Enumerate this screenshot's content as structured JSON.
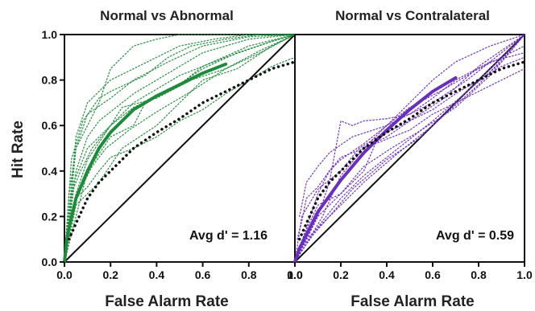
{
  "chart_data": [
    {
      "type": "line",
      "title": "Normal vs Abnormal",
      "xlabel": "False Alarm Rate",
      "ylabel": "Hit Rate",
      "xlim": [
        0,
        1
      ],
      "ylim": [
        0,
        1
      ],
      "xticks": [
        "0.0",
        "0.2",
        "0.4",
        "0.6",
        "0.8",
        "1.0"
      ],
      "yticks": [
        "0.0",
        "0.2",
        "0.4",
        "0.6",
        "0.8",
        "1.0"
      ],
      "annotation": "Avg d' = 1.16",
      "color": "#1f8a3c",
      "series": [
        {
          "x": [
            0,
            0.01,
            0.02,
            0.05,
            0.1,
            0.15,
            0.2,
            0.3,
            0.4,
            0.5,
            0.6,
            0.7
          ],
          "y": [
            0,
            0.1,
            0.15,
            0.28,
            0.4,
            0.5,
            0.57,
            0.67,
            0.73,
            0.78,
            0.83,
            0.87
          ]
        },
        {
          "x": [
            0.01,
            0.03,
            0.05,
            0.1,
            0.15,
            0.2,
            0.3,
            0.4,
            0.5,
            0.6,
            0.7,
            0.8,
            0.9,
            1
          ],
          "y": [
            0.1,
            0.18,
            0.28,
            0.33,
            0.4,
            0.46,
            0.5,
            0.55,
            0.62,
            0.67,
            0.74,
            0.8,
            0.86,
            0.9
          ]
        },
        {
          "x": [
            0,
            0.02,
            0.05,
            0.1,
            0.15,
            0.2,
            0.3,
            0.4,
            0.5,
            0.6,
            0.8,
            1
          ],
          "y": [
            0,
            0.3,
            0.5,
            0.6,
            0.7,
            0.85,
            0.95,
            0.98,
            1,
            1,
            1,
            1
          ]
        },
        {
          "x": [
            0,
            0.05,
            0.1,
            0.2,
            0.3,
            0.35,
            0.5,
            0.6,
            0.8,
            1
          ],
          "y": [
            0,
            0.2,
            0.4,
            0.55,
            0.6,
            0.7,
            0.78,
            0.86,
            0.95,
            1
          ]
        },
        {
          "x": [
            0,
            0.05,
            0.1,
            0.15,
            0.2,
            0.3,
            0.4,
            0.5,
            0.6,
            0.8,
            1
          ],
          "y": [
            0,
            0.4,
            0.55,
            0.62,
            0.66,
            0.74,
            0.8,
            0.86,
            0.92,
            0.98,
            1
          ]
        },
        {
          "x": [
            0,
            0.05,
            0.1,
            0.2,
            0.3,
            0.4,
            0.5,
            0.7,
            0.9,
            1
          ],
          "y": [
            0,
            0.3,
            0.45,
            0.6,
            0.7,
            0.76,
            0.82,
            0.9,
            0.97,
            1
          ]
        },
        {
          "x": [
            0,
            0.05,
            0.15,
            0.25,
            0.4,
            0.5,
            0.6,
            0.75,
            0.9,
            1
          ],
          "y": [
            0,
            0.25,
            0.35,
            0.5,
            0.6,
            0.7,
            0.8,
            0.85,
            0.95,
            1
          ]
        },
        {
          "x": [
            0,
            0.03,
            0.08,
            0.15,
            0.2,
            0.35,
            0.45,
            0.55,
            0.7,
            0.85,
            1
          ],
          "y": [
            0,
            0.45,
            0.62,
            0.72,
            0.75,
            0.82,
            0.9,
            0.95,
            0.98,
            1,
            1
          ]
        },
        {
          "x": [
            0,
            0.05,
            0.1,
            0.2,
            0.3,
            0.45,
            0.6,
            0.8,
            1
          ],
          "y": [
            0,
            0.5,
            0.65,
            0.72,
            0.8,
            0.88,
            0.95,
            0.99,
            1
          ]
        },
        {
          "x": [
            0,
            0.04,
            0.1,
            0.2,
            0.25,
            0.4,
            0.55,
            0.7,
            0.85,
            1
          ],
          "y": [
            0,
            0.35,
            0.5,
            0.6,
            0.68,
            0.72,
            0.8,
            0.85,
            0.92,
            1
          ]
        },
        {
          "x": [
            0,
            0.03,
            0.07,
            0.12,
            0.2,
            0.3,
            0.45,
            0.6,
            0.75,
            0.9,
            1
          ],
          "y": [
            0,
            0.3,
            0.4,
            0.5,
            0.6,
            0.68,
            0.75,
            0.85,
            0.92,
            0.97,
            1
          ]
        },
        {
          "x": [
            0,
            0.05,
            0.1,
            0.2,
            0.3,
            0.4,
            0.5,
            0.65,
            0.8,
            1
          ],
          "y": [
            0,
            0.55,
            0.7,
            0.8,
            0.85,
            0.9,
            0.95,
            0.98,
            1,
            1
          ]
        },
        {
          "x": [
            0,
            0.02,
            0.06,
            0.12,
            0.18,
            0.28,
            0.4,
            0.55,
            0.7,
            0.85,
            1
          ],
          "y": [
            0,
            0.2,
            0.3,
            0.42,
            0.5,
            0.58,
            0.66,
            0.75,
            0.85,
            0.93,
            1
          ]
        }
      ]
    },
    {
      "type": "line",
      "title": "Normal vs Contralateral",
      "xlabel": "False Alarm Rate",
      "ylabel": "",
      "xlim": [
        0,
        1
      ],
      "ylim": [
        0,
        1
      ],
      "xticks": [
        "0.0",
        "0.2",
        "0.4",
        "0.6",
        "0.8",
        "1.0"
      ],
      "annotation": "Avg d' = 0.59",
      "color": "#6a2fb8",
      "series": [
        {
          "x": [
            0,
            0.02,
            0.05,
            0.1,
            0.2,
            0.3,
            0.4,
            0.5,
            0.6,
            0.7
          ],
          "y": [
            0,
            0.06,
            0.12,
            0.22,
            0.36,
            0.48,
            0.58,
            0.67,
            0.75,
            0.81
          ]
        },
        {
          "x": [
            0.01,
            0.03,
            0.05,
            0.1,
            0.15,
            0.2,
            0.3,
            0.4,
            0.5,
            0.6,
            0.7,
            0.8,
            0.9,
            1
          ],
          "y": [
            0.1,
            0.18,
            0.28,
            0.33,
            0.4,
            0.46,
            0.5,
            0.55,
            0.62,
            0.67,
            0.74,
            0.8,
            0.86,
            0.9
          ]
        },
        {
          "x": [
            0,
            0.05,
            0.1,
            0.15,
            0.2,
            0.25,
            0.3,
            0.4,
            0.5,
            0.6,
            0.75,
            1
          ],
          "y": [
            0,
            0.1,
            0.2,
            0.35,
            0.62,
            0.6,
            0.62,
            0.63,
            0.65,
            0.7,
            0.8,
            1
          ]
        },
        {
          "x": [
            0,
            0.05,
            0.1,
            0.15,
            0.2,
            0.3,
            0.4,
            0.5,
            0.6,
            0.7,
            0.85,
            1
          ],
          "y": [
            0,
            0.15,
            0.3,
            0.4,
            0.45,
            0.52,
            0.6,
            0.65,
            0.72,
            0.8,
            0.88,
            0.92
          ]
        },
        {
          "x": [
            0,
            0.05,
            0.1,
            0.2,
            0.3,
            0.35,
            0.5,
            0.6,
            0.8,
            1
          ],
          "y": [
            0,
            0.1,
            0.2,
            0.3,
            0.4,
            0.52,
            0.58,
            0.65,
            0.75,
            0.85
          ]
        },
        {
          "x": [
            0,
            0.03,
            0.08,
            0.15,
            0.25,
            0.4,
            0.55,
            0.7,
            0.85,
            1
          ],
          "y": [
            0,
            0.05,
            0.12,
            0.2,
            0.32,
            0.45,
            0.55,
            0.7,
            0.85,
            1
          ]
        },
        {
          "x": [
            0,
            0.05,
            0.12,
            0.2,
            0.3,
            0.4,
            0.5,
            0.6,
            0.7,
            0.85,
            1
          ],
          "y": [
            0,
            0.08,
            0.2,
            0.38,
            0.5,
            0.6,
            0.7,
            0.8,
            0.88,
            0.95,
            1
          ]
        },
        {
          "x": [
            0,
            0.04,
            0.1,
            0.2,
            0.3,
            0.42,
            0.55,
            0.7,
            0.85,
            1
          ],
          "y": [
            0,
            0.12,
            0.25,
            0.3,
            0.42,
            0.5,
            0.58,
            0.68,
            0.82,
            1
          ]
        },
        {
          "x": [
            0,
            0.02,
            0.06,
            0.12,
            0.2,
            0.3,
            0.45,
            0.6,
            0.75,
            0.9,
            1
          ],
          "y": [
            0,
            0.05,
            0.1,
            0.18,
            0.28,
            0.38,
            0.5,
            0.62,
            0.75,
            0.88,
            1
          ]
        },
        {
          "x": [
            0.02,
            0.05,
            0.1,
            0.15,
            0.25,
            0.4,
            0.5,
            0.65,
            0.8,
            1
          ],
          "y": [
            0.2,
            0.35,
            0.42,
            0.48,
            0.55,
            0.6,
            0.68,
            0.76,
            0.85,
            0.95
          ]
        },
        {
          "x": [
            0,
            0.05,
            0.1,
            0.2,
            0.3,
            0.45,
            0.6,
            0.8,
            1
          ],
          "y": [
            0,
            0.1,
            0.15,
            0.25,
            0.35,
            0.48,
            0.6,
            0.78,
            1
          ]
        },
        {
          "x": [
            0,
            0.03,
            0.1,
            0.2,
            0.28,
            0.36,
            0.5,
            0.65,
            0.8,
            1
          ],
          "y": [
            0,
            0.2,
            0.32,
            0.4,
            0.5,
            0.55,
            0.62,
            0.72,
            0.86,
            1
          ]
        }
      ]
    }
  ],
  "reference_curve": {
    "x": [
      0.02,
      0.05,
      0.1,
      0.15,
      0.2,
      0.3,
      0.4,
      0.5,
      0.6,
      0.7,
      0.8,
      0.9,
      1.0
    ],
    "y": [
      0.1,
      0.17,
      0.28,
      0.35,
      0.4,
      0.5,
      0.57,
      0.63,
      0.7,
      0.75,
      0.8,
      0.85,
      0.88
    ]
  }
}
